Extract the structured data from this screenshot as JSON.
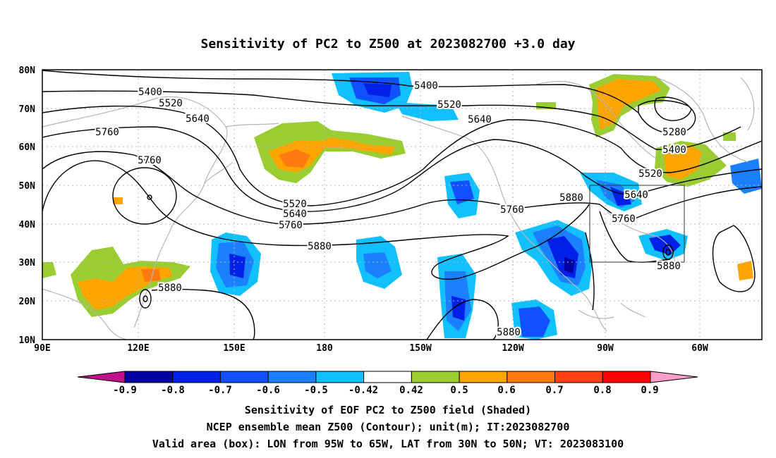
{
  "title": "Sensitivity of PC2 to Z500 at 2023082700 +3.0 day",
  "axes": {
    "lat_labels": [
      "80N",
      "70N",
      "60N",
      "50N",
      "40N",
      "30N",
      "20N",
      "10N"
    ],
    "lon_labels": [
      "90E",
      "120E",
      "150E",
      "180",
      "150W",
      "120W",
      "90W",
      "60W"
    ]
  },
  "contour_labels": [
    "5400",
    "5520",
    "5640",
    "5760",
    "5760",
    "5520",
    "5640",
    "5760",
    "5880",
    "5880",
    "5400",
    "5520",
    "5640",
    "5760",
    "5880",
    "5880",
    "5280",
    "5400",
    "5520",
    "5640",
    "5760",
    "5880"
  ],
  "colorbar": {
    "labels": [
      "-0.9",
      "-0.8",
      "-0.7",
      "-0.6",
      "-0.5",
      "-0.42",
      "0.42",
      "0.5",
      "0.6",
      "0.7",
      "0.8",
      "0.9"
    ],
    "colors": [
      "#0000a0",
      "#0020e8",
      "#1050ff",
      "#1a80ff",
      "#10c0ff",
      "#ffffff",
      "#9acd32",
      "#ffa500",
      "#ff7a10",
      "#ff4010",
      "#ff0000"
    ],
    "low_end_color": "#c0108c",
    "high_end_color": "#ff9ec8"
  },
  "captions": {
    "line1": "Sensitivity of EOF PC2 to Z500 field (Shaded)",
    "line2": "NCEP ensemble mean Z500 (Contour); unit(m); IT:2023082700",
    "line3": "Valid area (box): LON from 95W to 65W, LAT from 30N to 50N; VT: 2023083100"
  }
}
